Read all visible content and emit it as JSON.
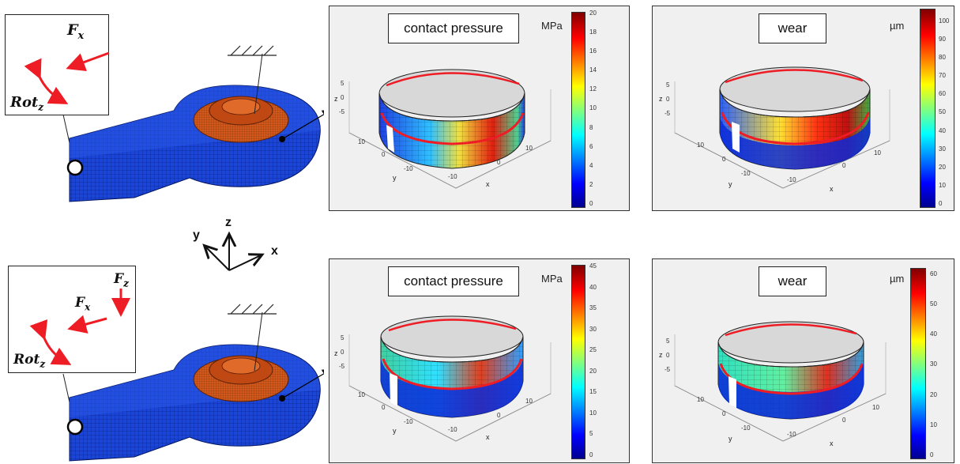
{
  "coordinate_axes": {
    "x": "x",
    "y": "y",
    "z": "z"
  },
  "rows": [
    {
      "loads": {
        "force_x": "F",
        "force_x_sub": "x",
        "rotation": "Rot",
        "rotation_sub": "z"
      },
      "plots": [
        {
          "title": "contact pressure",
          "unit": "MPa",
          "colorbar_ticks": [
            "20",
            "18",
            "16",
            "14",
            "12",
            "10",
            "8",
            "6",
            "4",
            "2",
            "0"
          ],
          "axis_label_x": "x",
          "axis_label_y": "y",
          "axis_label_z": "z",
          "z_ticks": [
            "5",
            "0",
            "-5"
          ],
          "x_ticks": [
            "-10",
            "0",
            "10"
          ],
          "y_ticks": [
            "10",
            "0",
            "-10"
          ]
        },
        {
          "title": "wear",
          "unit": "µm",
          "colorbar_ticks": [
            "100",
            "90",
            "80",
            "70",
            "60",
            "50",
            "40",
            "30",
            "20",
            "10",
            "0"
          ],
          "axis_label_x": "x",
          "axis_label_y": "y",
          "axis_label_z": "z",
          "z_ticks": [
            "5",
            "0",
            "-5"
          ],
          "x_ticks": [
            "-10",
            "0",
            "10"
          ],
          "y_ticks": [
            "10",
            "0",
            "-10"
          ]
        }
      ]
    },
    {
      "loads": {
        "force_x": "F",
        "force_x_sub": "x",
        "force_z": "F",
        "force_z_sub": "z",
        "rotation": "Rot",
        "rotation_sub": "z"
      },
      "plots": [
        {
          "title": "contact pressure",
          "unit": "MPa",
          "colorbar_ticks": [
            "45",
            "40",
            "35",
            "30",
            "25",
            "20",
            "15",
            "10",
            "5",
            "0"
          ],
          "axis_label_x": "x",
          "axis_label_y": "y",
          "axis_label_z": "z",
          "z_ticks": [
            "5",
            "0",
            "-5"
          ],
          "x_ticks": [
            "-10",
            "0",
            "10"
          ],
          "y_ticks": [
            "10",
            "0",
            "-10"
          ]
        },
        {
          "title": "wear",
          "unit": "µm",
          "colorbar_ticks": [
            "60",
            "50",
            "40",
            "30",
            "20",
            "10",
            "0"
          ],
          "axis_label_x": "x",
          "axis_label_y": "y",
          "axis_label_z": "z",
          "z_ticks": [
            "5",
            "0",
            "-5"
          ],
          "x_ticks": [
            "-10",
            "0",
            "10"
          ],
          "y_ticks": [
            "10",
            "0",
            "-10"
          ]
        }
      ]
    }
  ],
  "colors": {
    "mesh_blue": "#1a45d6",
    "mesh_orange": "#d2581c",
    "arrow_red": "#ee1c24"
  }
}
